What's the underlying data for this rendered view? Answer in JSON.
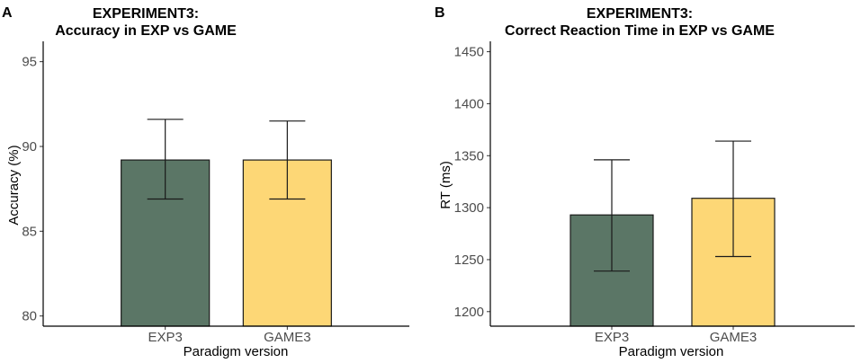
{
  "chart_data": [
    {
      "panel": "A",
      "type": "bar",
      "title_line1": "EXPERIMENT3:",
      "title_line2": "Accuracy in EXP vs GAME",
      "xlabel": "Paradigm version",
      "ylabel": "Accuracy (%)",
      "categories": [
        "EXP3",
        "GAME3"
      ],
      "values": [
        89.2,
        89.2
      ],
      "error_low": [
        86.9,
        86.9
      ],
      "error_high": [
        91.6,
        91.5
      ],
      "ylim": [
        79.4,
        96.2
      ],
      "yticks": [
        80,
        85,
        90,
        95
      ],
      "colors": [
        "#5b7666",
        "#fdd776"
      ]
    },
    {
      "panel": "B",
      "type": "bar",
      "title_line1": "EXPERIMENT3:",
      "title_line2": "Correct Reaction Time in EXP vs GAME",
      "xlabel": "Paradigm version",
      "ylabel": "RT (ms)",
      "categories": [
        "EXP3",
        "GAME3"
      ],
      "values": [
        1293,
        1309
      ],
      "error_low": [
        1239,
        1253
      ],
      "error_high": [
        1346,
        1364
      ],
      "ylim": [
        1186,
        1460
      ],
      "yticks": [
        1200,
        1250,
        1300,
        1350,
        1400,
        1450
      ],
      "colors": [
        "#5b7666",
        "#fdd776"
      ]
    }
  ]
}
